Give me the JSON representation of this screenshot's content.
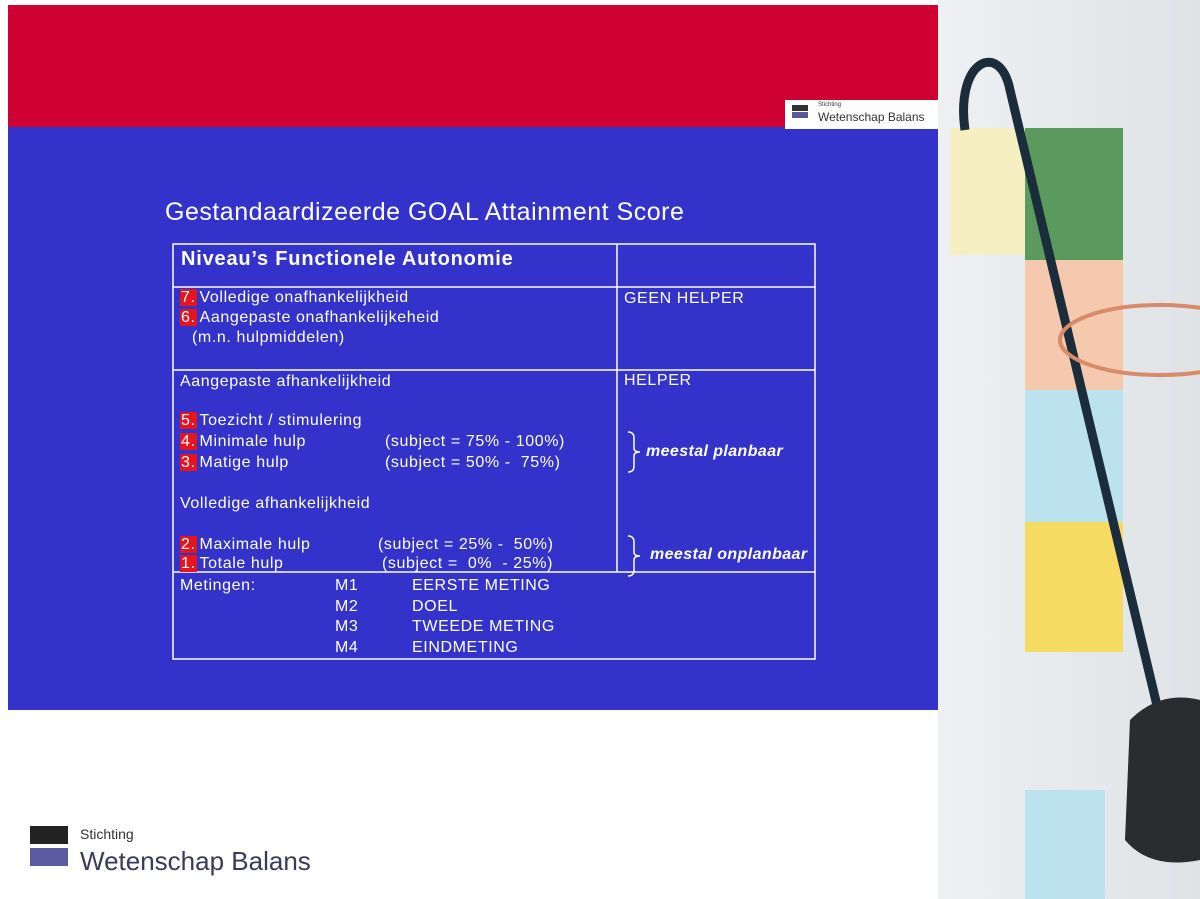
{
  "logo_small": {
    "line1": "Stichting",
    "line2": "Wetenschap Balans"
  },
  "title": "Gestandaardizeerde GOAL Attainment Score",
  "table": {
    "header": "Niveau’s Functionele Autonomie",
    "section1": {
      "helper": "GEEN HELPER",
      "items": [
        {
          "number": "7.",
          "text": "Volledige onafhankelijkheid"
        },
        {
          "number": "6.",
          "text": "Aangepaste onafhankelijkeheid"
        }
      ],
      "note": "(m.n. hulpmiddelen)"
    },
    "section2": {
      "helper": "HELPER",
      "heading1": "Aangepaste afhankelijkheid",
      "items1": [
        {
          "number": "5.",
          "text": "Toezicht / stimulering",
          "range": null
        },
        {
          "number": "4.",
          "text": "Minimale hulp",
          "range": "(subject = 75% - 100%)"
        },
        {
          "number": "3.",
          "text": "Matige hulp",
          "range": "(subject = 50% -  75%)"
        }
      ],
      "heading2": "Volledige afhankelijkheid",
      "items2": [
        {
          "number": "2.",
          "text": "Maximale hulp",
          "range": "(subject = 25% -  50%)"
        },
        {
          "number": "1.",
          "text": "Totale hulp",
          "range": "(subject =  0%  - 25%)"
        }
      ],
      "note_planned": "meestal planbaar",
      "note_unplanned": "meestal onplanbaar"
    },
    "measurements": {
      "label": "Metingen:",
      "rows": [
        [
          "M1",
          "EERSTE METING"
        ],
        [
          "M2",
          "DOEL"
        ],
        [
          "M3",
          "TWEEDE METING"
        ],
        [
          "M4",
          "EINDMETING"
        ]
      ]
    }
  },
  "footer_logo": {
    "line1": "Stichting",
    "line2": "Wetenschap Balans"
  }
}
